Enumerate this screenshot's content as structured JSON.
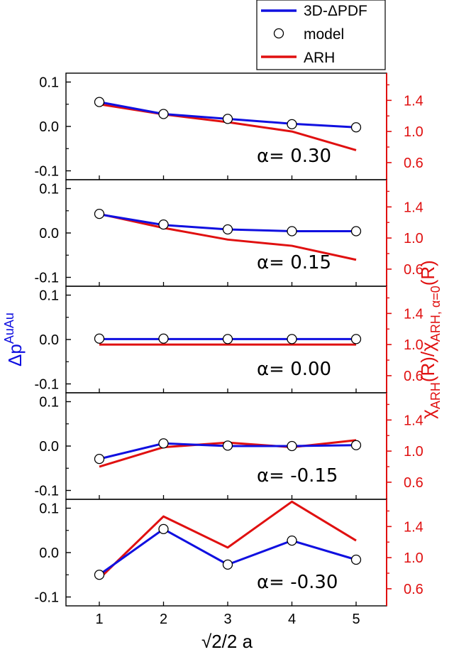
{
  "chart_data": {
    "type": "line",
    "x": [
      1,
      2,
      3,
      4,
      5
    ],
    "xlabel": "√2/2 a",
    "ylabel_left": "Δp^AuAu",
    "ylabel_right": "χ_ARH(R)/χ_ARH, α=0(R)",
    "left_ylim": [
      -0.12,
      0.12
    ],
    "right_ylim": [
      0.38,
      1.75
    ],
    "left_ticks": [
      "0.1",
      "0.0",
      "-0.1"
    ],
    "right_ticks": [
      "1.4",
      "1.0",
      "0.6"
    ],
    "x_ticks": [
      "1",
      "2",
      "3",
      "4",
      "5"
    ],
    "legend": [
      {
        "label": "3D-ΔPDF",
        "kind": "line",
        "color": "#1010e0"
      },
      {
        "label": "model",
        "kind": "marker"
      },
      {
        "label": "ARH",
        "kind": "line",
        "color": "#e01010"
      }
    ],
    "colors": {
      "pdf": "#1010e0",
      "arh": "#e01010",
      "right_axis": "#e01010",
      "left_title": "#1010e0"
    },
    "panels": [
      {
        "label": "α= 0.30",
        "pdf": [
          0.055,
          0.028,
          0.017,
          0.006,
          -0.002
        ],
        "model": [
          0.055,
          0.028,
          0.017,
          0.005,
          -0.002
        ],
        "arh": [
          1.35,
          1.22,
          1.12,
          1.0,
          0.76
        ]
      },
      {
        "label": "α= 0.15",
        "pdf": [
          0.042,
          0.018,
          0.008,
          0.004,
          0.004
        ],
        "model": [
          0.043,
          0.019,
          0.008,
          0.004,
          0.004
        ],
        "arh": [
          1.31,
          1.13,
          0.98,
          0.9,
          0.72
        ]
      },
      {
        "label": "α= 0.00",
        "pdf": [
          0.001,
          0.001,
          0.001,
          0.001,
          0.001
        ],
        "model": [
          0.002,
          0.002,
          0.001,
          0.001,
          0.001
        ],
        "arh": [
          1.0,
          1.0,
          1.0,
          1.0,
          1.0
        ]
      },
      {
        "label": "α= -0.15",
        "pdf": [
          -0.029,
          0.006,
          0.0,
          0.0,
          0.002
        ],
        "model": [
          -0.029,
          0.006,
          0.001,
          0.0,
          0.002
        ],
        "arh": [
          0.8,
          1.05,
          1.11,
          1.05,
          1.14
        ]
      },
      {
        "label": "α= -0.30",
        "pdf": [
          -0.05,
          0.053,
          -0.027,
          0.027,
          -0.016
        ],
        "model": [
          -0.05,
          0.053,
          -0.027,
          0.027,
          -0.016
        ],
        "arh": [
          0.73,
          1.53,
          1.13,
          1.72,
          1.22
        ]
      }
    ]
  }
}
